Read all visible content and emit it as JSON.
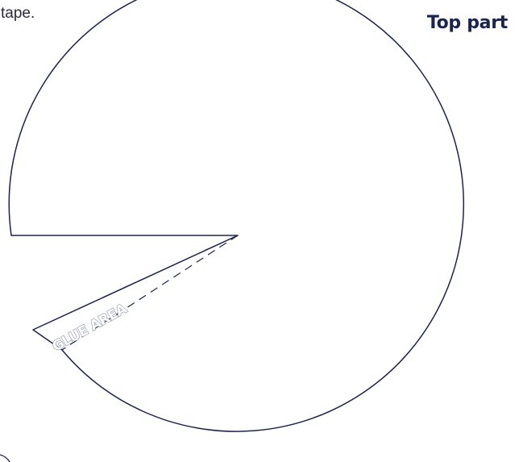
{
  "intro": {
    "text": "tape."
  },
  "header": {
    "title": "Top part"
  },
  "template": {
    "glue_label": "GLUE AREA"
  },
  "colors": {
    "outline": "#1b2350",
    "glue_text_outline": "#8a90a8"
  }
}
